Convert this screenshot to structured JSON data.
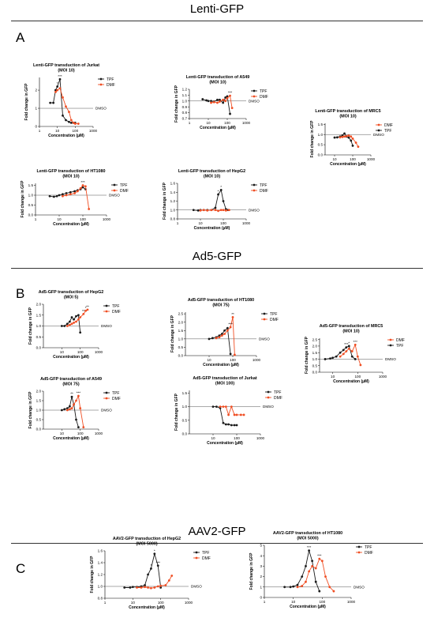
{
  "sections": [
    {
      "title": "Lenti-GFP",
      "letter": "A"
    },
    {
      "title": "Ad5-GFP",
      "letter": "B"
    },
    {
      "title": "AAV2-GFP",
      "letter": "C"
    }
  ],
  "colors": {
    "TPF": "#1a1a1a",
    "DMF": "#f04e23"
  },
  "chart_data": [
    {
      "type": "line",
      "title": [
        "Lenti-GFP transduction of Jurkat",
        "(MOI 10)"
      ],
      "xlabel": "Concentration (µM)",
      "ylabel": "Fold change in GFP",
      "xscale": "log",
      "xlim": [
        1,
        1000
      ],
      "xticks": [
        "1",
        "10",
        "100",
        "1000"
      ],
      "ylim": [
        0,
        2.7
      ],
      "yticks": [
        "0",
        "1",
        "2"
      ],
      "reference": {
        "y": 1,
        "label": "DMSO"
      },
      "legend": [
        "TPF",
        "DMF"
      ],
      "grid": false,
      "series": [
        {
          "name": "TPF",
          "x": [
            4,
            6,
            8,
            10,
            14,
            20,
            30,
            45,
            60,
            80,
            100
          ],
          "y": [
            1.3,
            1.3,
            2.0,
            2.2,
            2.6,
            0.6,
            0.35,
            0.25,
            0.2,
            0.2,
            0.2
          ]
        },
        {
          "name": "DMF",
          "x": [
            8,
            10,
            14,
            20,
            30,
            45,
            60,
            80,
            100,
            150
          ],
          "y": [
            1.9,
            2.0,
            2.1,
            1.6,
            1.1,
            0.8,
            0.35,
            0.2,
            0.15,
            0.15
          ]
        }
      ],
      "annotations": [
        "***",
        "*"
      ]
    },
    {
      "type": "line",
      "title": [
        "Lenti-GFP transduction of A549",
        "(MOI 10)"
      ],
      "xlabel": "Concentration (µM)",
      "ylabel": "Fold change in GFP",
      "xscale": "log",
      "xlim": [
        1,
        1000
      ],
      "xticks": [
        "1",
        "10",
        "100",
        "1000"
      ],
      "ylim": [
        0.7,
        1.2
      ],
      "yticks": [
        "0.7",
        "0.8",
        "0.9",
        "1.0",
        "1.1",
        "1.2"
      ],
      "reference": {
        "y": 1,
        "label": "DMSO"
      },
      "legend": [
        "TPF",
        "DMF"
      ],
      "grid": false,
      "series": [
        {
          "name": "TPF",
          "x": [
            5,
            8,
            10,
            14,
            20,
            30,
            40,
            60,
            80,
            100,
            140
          ],
          "y": [
            1.03,
            1.01,
            1.0,
            1.0,
            0.99,
            1.02,
            1.02,
            0.97,
            1.06,
            1.08,
            0.78
          ]
        },
        {
          "name": "DMF",
          "x": [
            14,
            20,
            30,
            40,
            60,
            80,
            100,
            140,
            180
          ],
          "y": [
            0.97,
            0.98,
            0.97,
            0.99,
            1.02,
            1.0,
            1.05,
            1.09,
            0.88
          ]
        }
      ],
      "annotations": [
        "***"
      ]
    },
    {
      "type": "line",
      "title": [
        "Lenti-GFP transduction of MRC5",
        "(MOI 10)"
      ],
      "xlabel": "Concentration (µM)",
      "ylabel": "Fold change in GFP",
      "xscale": "log",
      "xlim": [
        3,
        1000
      ],
      "xticks": [
        "10",
        "100",
        "1000"
      ],
      "ylim": [
        0,
        1.55
      ],
      "yticks": [
        "0.0",
        "0.5",
        "1.0",
        "1.5"
      ],
      "reference": {
        "y": 1,
        "label": "DMSO"
      },
      "legend": [
        "DMF",
        "TPF"
      ],
      "grid": false,
      "series": [
        {
          "name": "TPF",
          "x": [
            10,
            14,
            20,
            27,
            35,
            45,
            60,
            80,
            100
          ],
          "y": [
            0.85,
            0.86,
            0.9,
            0.95,
            1.05,
            0.9,
            0.85,
            0.7,
            0.45
          ]
        },
        {
          "name": "DMF",
          "x": [
            20,
            27,
            35,
            45,
            60,
            80,
            100,
            150,
            200
          ],
          "y": [
            0.86,
            0.88,
            0.9,
            0.92,
            0.95,
            0.9,
            0.8,
            0.6,
            0.4
          ]
        }
      ]
    },
    {
      "type": "line",
      "title": [
        "Lenti-GFP transduction of HT1080",
        "(MOI 10)"
      ],
      "xlabel": "Concentration (µM)",
      "ylabel": "Fold change in GFP",
      "xscale": "log",
      "xlim": [
        1,
        1000
      ],
      "xticks": [
        "1",
        "10",
        "100",
        "1000"
      ],
      "ylim": [
        0,
        1.6
      ],
      "yticks": [
        "0.0",
        "0.5",
        "1.0",
        "1.5"
      ],
      "reference": {
        "y": 1,
        "label": "DMSO"
      },
      "legend": [
        "TPF",
        "DMF"
      ],
      "grid": false,
      "series": [
        {
          "name": "TPF",
          "x": [
            4,
            6,
            8,
            10,
            14,
            20,
            30,
            45,
            60,
            80,
            100,
            130
          ],
          "y": [
            0.95,
            0.92,
            0.95,
            1.0,
            1.05,
            1.1,
            1.15,
            1.2,
            1.25,
            1.3,
            1.4,
            1.3
          ]
        },
        {
          "name": "DMF",
          "x": [
            14,
            20,
            30,
            45,
            60,
            80,
            100,
            130,
            180
          ],
          "y": [
            0.95,
            1.0,
            1.05,
            1.1,
            1.2,
            1.35,
            1.5,
            1.45,
            0.3
          ]
        }
      ],
      "annotations": [
        "***"
      ]
    },
    {
      "type": "line",
      "title": [
        "Lenti-GFP transduction of HepG2",
        "(MOI 10)"
      ],
      "xlabel": "Concentration (µM)",
      "ylabel": "Fold change in GFP",
      "xscale": "log",
      "xlim": [
        1,
        1000
      ],
      "xticks": [
        "1",
        "10",
        "100",
        "1000"
      ],
      "ylim": [
        0.8,
        1.6
      ],
      "yticks": [
        "0.8",
        "1.0",
        "1.2",
        "1.4",
        "1.6"
      ],
      "reference": {
        "y": 1,
        "label": "DMSO"
      },
      "legend": [
        "TPF",
        "DMF"
      ],
      "grid": false,
      "series": [
        {
          "name": "TPF",
          "x": [
            5,
            8,
            10,
            14,
            20,
            30,
            45,
            60,
            80,
            100,
            130,
            160
          ],
          "y": [
            1.0,
            0.99,
            1.0,
            1.0,
            1.0,
            1.0,
            1.05,
            1.35,
            1.45,
            1.2,
            1.02,
            1.0
          ]
        },
        {
          "name": "DMF",
          "x": [
            10,
            14,
            20,
            30,
            45,
            60,
            80,
            100,
            130,
            180
          ],
          "y": [
            0.99,
            1.0,
            0.99,
            1.0,
            1.0,
            0.98,
            1.0,
            1.0,
            0.99,
            1.0
          ]
        }
      ],
      "annotations": [
        "*",
        "*"
      ]
    },
    {
      "type": "line",
      "title": [
        "Ad5-GFP transduction of HepG2",
        "(MOI 5)"
      ],
      "xlabel": "Concentration (µM)",
      "ylabel": "Fold change in GFP",
      "xscale": "log",
      "xlim": [
        1,
        1000
      ],
      "xticks": [
        "10",
        "100",
        "1000"
      ],
      "ylim": [
        0,
        2.0
      ],
      "yticks": [
        "0.0",
        "0.5",
        "1.0",
        "1.5",
        "2.0"
      ],
      "reference": {
        "y": 1,
        "label": "DMSO"
      },
      "legend": [
        "TPF",
        "DMF"
      ],
      "grid": false,
      "series": [
        {
          "name": "TPF",
          "x": [
            10,
            14,
            20,
            27,
            35,
            45,
            60,
            80,
            100
          ],
          "y": [
            1.0,
            1.0,
            1.1,
            1.2,
            1.4,
            1.3,
            1.45,
            1.5,
            0.7
          ]
        },
        {
          "name": "DMF",
          "x": [
            20,
            27,
            35,
            45,
            60,
            80,
            100,
            150,
            200,
            250
          ],
          "y": [
            1.0,
            1.05,
            1.1,
            1.15,
            1.2,
            1.3,
            1.4,
            1.55,
            1.7,
            1.75
          ]
        }
      ],
      "annotations": [
        "**",
        "*",
        "**"
      ]
    },
    {
      "type": "line",
      "title": [
        "Ad5-GFP transduction of HT1080",
        "(MOI 75)"
      ],
      "xlabel": "Concentration (µM)",
      "ylabel": "Fold change in GFP",
      "xscale": "log",
      "xlim": [
        1,
        1000
      ],
      "xticks": [
        "10",
        "100",
        "1000"
      ],
      "ylim": [
        0,
        2.6
      ],
      "yticks": [
        "0.0",
        "0.5",
        "1.0",
        "1.5",
        "2.0",
        "2.5"
      ],
      "reference": {
        "y": 1,
        "label": "DMSO"
      },
      "legend": [
        "TPF",
        "DMF"
      ],
      "grid": false,
      "series": [
        {
          "name": "TPF",
          "x": [
            10,
            14,
            20,
            27,
            35,
            45,
            60,
            80
          ],
          "y": [
            1.0,
            1.05,
            1.1,
            1.2,
            1.3,
            1.5,
            1.65,
            0.1
          ]
        },
        {
          "name": "DMF",
          "x": [
            20,
            27,
            35,
            45,
            60,
            80,
            100,
            120
          ],
          "y": [
            1.05,
            1.1,
            1.2,
            1.3,
            1.5,
            1.7,
            2.3,
            0.05
          ]
        }
      ],
      "annotations": [
        "**",
        "***"
      ]
    },
    {
      "type": "line",
      "title": [
        "Ad5-GFP transduction of MRC5",
        "(MOI 10)"
      ],
      "xlabel": "Concentration (µM)",
      "ylabel": "Fold change in GFP",
      "xscale": "log",
      "xlim": [
        3,
        1000
      ],
      "xticks": [
        "10",
        "100",
        "1000"
      ],
      "ylim": [
        0,
        2.6
      ],
      "yticks": [
        "0.0",
        "0.5",
        "1.0",
        "1.5",
        "2.0",
        "2.5"
      ],
      "reference": {
        "y": 1,
        "label": "DMSO"
      },
      "legend": [
        "DMF",
        "TPF"
      ],
      "grid": false,
      "series": [
        {
          "name": "TPF",
          "x": [
            5,
            8,
            10,
            14,
            20,
            27,
            35,
            45,
            60,
            80
          ],
          "y": [
            1.0,
            1.05,
            1.1,
            1.2,
            1.5,
            1.7,
            1.9,
            2.0,
            1.2,
            1.0
          ]
        },
        {
          "name": "DMF",
          "x": [
            20,
            27,
            35,
            45,
            60,
            80,
            100,
            130
          ],
          "y": [
            1.2,
            1.4,
            1.6,
            1.8,
            1.6,
            2.1,
            1.2,
            0.55
          ]
        }
      ],
      "annotations": [
        "***",
        "*",
        "***"
      ]
    },
    {
      "type": "line",
      "title": [
        "Ad5-GFP transduction of A549",
        "(MOI 75)"
      ],
      "xlabel": "Concentration (µM)",
      "ylabel": "Fold change in GFP",
      "xscale": "log",
      "xlim": [
        1,
        1000
      ],
      "xticks": [
        "10",
        "100",
        "1000"
      ],
      "ylim": [
        0,
        2.0
      ],
      "yticks": [
        "0.0",
        "0.5",
        "1.0",
        "1.5",
        "2.0"
      ],
      "reference": {
        "y": 1,
        "label": "DMSO"
      },
      "legend": [
        "TPF",
        "DMF"
      ],
      "grid": false,
      "series": [
        {
          "name": "TPF",
          "x": [
            10,
            14,
            20,
            27,
            35,
            45,
            60,
            80
          ],
          "y": [
            1.0,
            1.05,
            1.1,
            1.2,
            1.7,
            1.3,
            0.5,
            0.1
          ]
        },
        {
          "name": "DMF",
          "x": [
            20,
            27,
            35,
            45,
            60,
            80,
            100,
            150
          ],
          "y": [
            1.0,
            1.05,
            1.1,
            1.3,
            1.5,
            1.75,
            1.1,
            0.1
          ]
        }
      ],
      "annotations": [
        "***",
        "**"
      ]
    },
    {
      "type": "line",
      "title": [
        "Ad5-GFP transduction of Jurkat",
        "(MOI 100)"
      ],
      "xlabel": "Concentration (µM)",
      "ylabel": "Fold change in GFP",
      "xscale": "log",
      "xlim": [
        1,
        1000
      ],
      "xticks": [
        "10",
        "100",
        "1000"
      ],
      "ylim": [
        0,
        1.6
      ],
      "yticks": [
        "0.0",
        "0.5",
        "1.0",
        "1.5"
      ],
      "reference": {
        "y": 1,
        "label": "DMSO"
      },
      "legend": [
        "TPF",
        "DMF"
      ],
      "grid": false,
      "series": [
        {
          "name": "TPF",
          "x": [
            10,
            14,
            20,
            27,
            35,
            45,
            60,
            80,
            100
          ],
          "y": [
            1.0,
            1.0,
            0.95,
            0.4,
            0.35,
            0.35,
            0.32,
            0.32,
            0.32
          ]
        },
        {
          "name": "DMF",
          "x": [
            20,
            27,
            35,
            45,
            60,
            80,
            100,
            150,
            200
          ],
          "y": [
            1.0,
            1.0,
            1.0,
            0.7,
            1.0,
            0.7,
            0.7,
            0.7,
            0.7
          ]
        }
      ]
    },
    {
      "type": "line",
      "title": [
        "AAV2-GFP transduction of HepG2",
        "(MOI 5000)"
      ],
      "xlabel": "Concentration (µM)",
      "ylabel": "Fold change in GFP",
      "xscale": "log",
      "xlim": [
        1,
        1000
      ],
      "xticks": [
        "1",
        "10",
        "100",
        "1000"
      ],
      "ylim": [
        0.8,
        1.6
      ],
      "yticks": [
        "0.8",
        "1.0",
        "1.2",
        "1.4",
        "1.6"
      ],
      "reference": {
        "y": 1,
        "label": "DMSO"
      },
      "legend": [
        "TPF",
        "DMF"
      ],
      "grid": false,
      "series": [
        {
          "name": "TPF",
          "x": [
            5,
            8,
            10,
            14,
            20,
            27,
            35,
            45,
            60,
            80,
            100
          ],
          "y": [
            0.98,
            0.98,
            0.99,
            0.99,
            1.0,
            1.02,
            1.2,
            1.3,
            1.55,
            1.35,
            0.98
          ]
        },
        {
          "name": "DMF",
          "x": [
            14,
            20,
            27,
            35,
            45,
            60,
            80,
            100,
            150,
            200,
            250
          ],
          "y": [
            0.98,
            0.98,
            0.99,
            0.98,
            0.97,
            0.98,
            1.0,
            1.01,
            1.02,
            1.1,
            1.18
          ]
        }
      ],
      "annotations": [
        "*",
        "***",
        "*"
      ]
    },
    {
      "type": "line",
      "title": [
        "AAV2-GFP transduction of HT1080",
        "(MOI 5000)"
      ],
      "xlabel": "Concentration (µM)",
      "ylabel": "Fold change in GFP",
      "xscale": "log",
      "xlim": [
        1,
        1000
      ],
      "xticks": [
        "1",
        "10",
        "100",
        "1000"
      ],
      "ylim": [
        0,
        5
      ],
      "yticks": [
        "0",
        "1",
        "2",
        "3",
        "4",
        "5"
      ],
      "reference": {
        "y": 1,
        "label": "DMSO"
      },
      "legend": [
        "TPF",
        "DMF"
      ],
      "grid": false,
      "series": [
        {
          "name": "TPF",
          "x": [
            5,
            8,
            10,
            14,
            20,
            27,
            35,
            45,
            60,
            80
          ],
          "y": [
            1.0,
            1.0,
            1.05,
            1.2,
            2.0,
            3.0,
            4.5,
            3.5,
            1.5,
            0.6
          ]
        },
        {
          "name": "DMF",
          "x": [
            14,
            20,
            27,
            35,
            45,
            60,
            80,
            100,
            130,
            180,
            250
          ],
          "y": [
            1.0,
            1.1,
            1.5,
            2.5,
            3.0,
            2.8,
            3.7,
            3.5,
            2.0,
            1.0,
            0.6
          ]
        }
      ],
      "annotations": [
        "***",
        "***"
      ]
    }
  ]
}
